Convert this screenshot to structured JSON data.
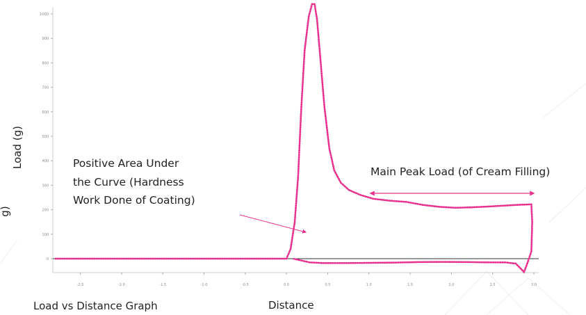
{
  "chart_data": {
    "type": "line",
    "title": "Load vs Distance Graph",
    "xlabel": "Distance",
    "ylabel": "Load (g)",
    "ylabel_partial": "g)",
    "xlim": [
      -2.8,
      3.0
    ],
    "ylim": [
      -80,
      1080
    ],
    "grid": false,
    "x_ticks": [
      {
        "value": -2.5,
        "label": "-2.5"
      },
      {
        "value": -2.0,
        "label": "-2.0"
      },
      {
        "value": -1.5,
        "label": "-1.5"
      },
      {
        "value": -1.0,
        "label": "-1.0"
      },
      {
        "value": -0.5,
        "label": "-0.5"
      },
      {
        "value": 0.0,
        "label": "0.0"
      },
      {
        "value": 0.5,
        "label": "0.5"
      },
      {
        "value": 1.0,
        "label": "1.0"
      },
      {
        "value": 1.5,
        "label": "1.5"
      },
      {
        "value": 2.0,
        "label": "2.0"
      },
      {
        "value": 2.5,
        "label": "2.5"
      },
      {
        "value": 3.0,
        "label": "3.0"
      }
    ],
    "y_ticks": [
      {
        "value": 0,
        "label": "0"
      },
      {
        "value": 100,
        "label": "100"
      },
      {
        "value": 200,
        "label": "200"
      },
      {
        "value": 300,
        "label": "300"
      },
      {
        "value": 400,
        "label": "400"
      },
      {
        "value": 500,
        "label": "500"
      },
      {
        "value": 600,
        "label": "600"
      },
      {
        "value": 700,
        "label": "700"
      },
      {
        "value": 800,
        "label": "800"
      },
      {
        "value": 900,
        "label": "900"
      },
      {
        "value": 1000,
        "label": "1000"
      }
    ],
    "series": [
      {
        "color": "#e8328f",
        "points": [
          [
            -2.8,
            0
          ],
          [
            -2.0,
            0
          ],
          [
            -1.0,
            0
          ],
          [
            -0.2,
            0
          ],
          [
            0.0,
            0
          ],
          [
            0.05,
            40
          ],
          [
            0.1,
            150
          ],
          [
            0.14,
            330
          ],
          [
            0.18,
            620
          ],
          [
            0.22,
            850
          ],
          [
            0.27,
            990
          ],
          [
            0.31,
            1040
          ],
          [
            0.34,
            1040
          ],
          [
            0.37,
            980
          ],
          [
            0.41,
            820
          ],
          [
            0.46,
            620
          ],
          [
            0.52,
            450
          ],
          [
            0.58,
            360
          ],
          [
            0.66,
            310
          ],
          [
            0.76,
            280
          ],
          [
            0.9,
            260
          ],
          [
            1.05,
            245
          ],
          [
            1.25,
            237
          ],
          [
            1.45,
            232
          ],
          [
            1.65,
            220
          ],
          [
            1.85,
            212
          ],
          [
            2.05,
            208
          ],
          [
            2.25,
            210
          ],
          [
            2.45,
            213
          ],
          [
            2.65,
            217
          ],
          [
            2.8,
            220
          ],
          [
            2.97,
            222
          ],
          [
            2.98,
            150
          ],
          [
            2.97,
            30
          ],
          [
            2.92,
            -20
          ],
          [
            2.88,
            -55
          ],
          [
            2.84,
            -40
          ],
          [
            2.78,
            -20
          ],
          [
            2.65,
            -15
          ],
          [
            2.45,
            -15
          ],
          [
            2.2,
            -14
          ],
          [
            1.9,
            -13
          ],
          [
            1.6,
            -14
          ],
          [
            1.3,
            -16
          ],
          [
            1.0,
            -17
          ],
          [
            0.7,
            -18
          ],
          [
            0.45,
            -18
          ],
          [
            0.28,
            -15
          ],
          [
            0.15,
            -5
          ],
          [
            0.08,
            0
          ]
        ]
      }
    ],
    "annotations": [
      {
        "lines": [
          "Positive Area Under",
          "the Curve (Hardness",
          "Work Done of Coating)"
        ]
      },
      {
        "lines": [
          "Main Peak Load (of Cream Filling)"
        ]
      }
    ]
  }
}
